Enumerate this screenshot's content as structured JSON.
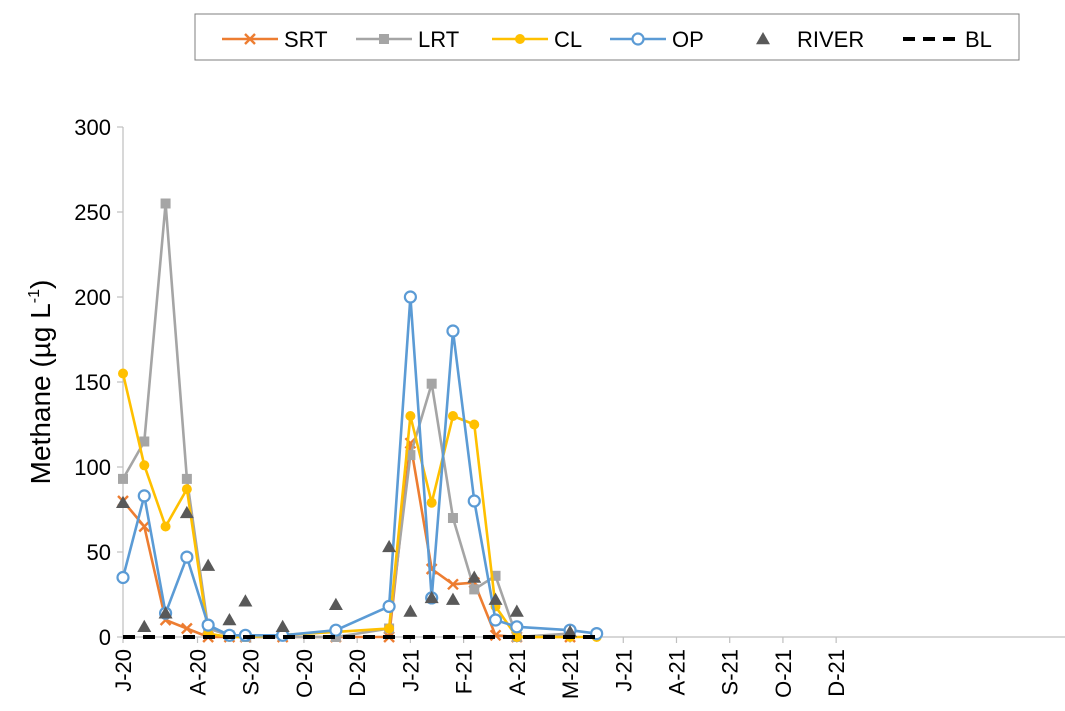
{
  "chart_data": {
    "type": "line",
    "ylabel_main": "Methane (µg L",
    "ylabel_sup": "-1",
    "ylabel_close": ")",
    "ylim": [
      0,
      300
    ],
    "yticks": [
      0,
      50,
      100,
      150,
      200,
      250,
      300
    ],
    "xlim": [
      0,
      17.7
    ],
    "grid": false,
    "legend_position": "top",
    "x_ticks": [
      {
        "label": "J-20",
        "x": 0
      },
      {
        "label": "A-20",
        "x": 1.4
      },
      {
        "label": "S-20",
        "x": 2.4
      },
      {
        "label": "O-20",
        "x": 3.4
      },
      {
        "label": "D-20",
        "x": 4.4
      },
      {
        "label": "J-21",
        "x": 5.4
      },
      {
        "label": "F-21",
        "x": 6.4
      },
      {
        "label": "A-21",
        "x": 7.4
      },
      {
        "label": "M-21",
        "x": 8.4
      },
      {
        "label": "J-21",
        "x": 9.4
      },
      {
        "label": "A-21",
        "x": 10.4
      },
      {
        "label": "S-21",
        "x": 11.4
      },
      {
        "label": "O-21",
        "x": 12.4
      },
      {
        "label": "D-21",
        "x": 13.4
      }
    ],
    "series": [
      {
        "name": "SRT",
        "color": "#ED7D31",
        "marker": "x",
        "line": true,
        "points": [
          [
            0,
            80
          ],
          [
            0.4,
            65
          ],
          [
            0.8,
            10
          ],
          [
            1.2,
            5
          ],
          [
            1.6,
            0
          ],
          [
            2.0,
            0
          ],
          [
            2.3,
            0
          ],
          [
            3.0,
            0
          ],
          [
            4.0,
            0
          ],
          [
            5.0,
            0
          ],
          [
            5.4,
            114
          ],
          [
            5.8,
            40
          ],
          [
            6.2,
            31
          ],
          [
            6.6,
            32
          ],
          [
            7.0,
            1
          ],
          [
            7.4,
            0
          ],
          [
            8.4,
            0
          ]
        ]
      },
      {
        "name": "LRT",
        "color": "#A5A5A5",
        "marker": "square",
        "line": true,
        "points": [
          [
            0,
            93
          ],
          [
            0.4,
            115
          ],
          [
            0.8,
            255
          ],
          [
            1.2,
            93
          ],
          [
            1.6,
            5
          ],
          [
            2.0,
            1
          ],
          [
            2.3,
            0
          ],
          [
            4.0,
            0
          ],
          [
            5.0,
            5
          ],
          [
            5.4,
            107
          ],
          [
            5.8,
            149
          ],
          [
            6.2,
            70
          ],
          [
            6.6,
            28
          ],
          [
            7.0,
            36
          ],
          [
            7.4,
            0
          ],
          [
            8.4,
            2
          ]
        ]
      },
      {
        "name": "CL",
        "color": "#FFC000",
        "marker": "dot",
        "line": true,
        "points": [
          [
            0,
            155
          ],
          [
            0.4,
            101
          ],
          [
            0.8,
            65
          ],
          [
            1.2,
            87
          ],
          [
            1.6,
            2
          ],
          [
            2.0,
            0
          ],
          [
            2.3,
            0
          ],
          [
            4.0,
            3
          ],
          [
            5.0,
            5
          ],
          [
            5.4,
            130
          ],
          [
            5.8,
            79
          ],
          [
            6.2,
            130
          ],
          [
            6.6,
            125
          ],
          [
            7.0,
            18
          ],
          [
            7.4,
            0
          ],
          [
            8.4,
            0
          ],
          [
            8.9,
            0
          ]
        ]
      },
      {
        "name": "OP",
        "color": "#5B9BD5",
        "marker": "circle",
        "line": true,
        "points": [
          [
            0,
            35
          ],
          [
            0.4,
            83
          ],
          [
            0.8,
            14
          ],
          [
            1.2,
            47
          ],
          [
            1.6,
            7
          ],
          [
            2.0,
            1
          ],
          [
            2.3,
            1
          ],
          [
            3.0,
            1
          ],
          [
            4.0,
            4
          ],
          [
            5.0,
            18
          ],
          [
            5.4,
            200
          ],
          [
            5.8,
            23
          ],
          [
            6.2,
            180
          ],
          [
            6.6,
            80
          ],
          [
            7.0,
            10
          ],
          [
            7.4,
            6
          ],
          [
            8.4,
            4
          ],
          [
            8.9,
            2
          ]
        ]
      },
      {
        "name": "RIVER",
        "color": "#595959",
        "marker": "triangle",
        "line": false,
        "points": [
          [
            0,
            79
          ],
          [
            0.4,
            6
          ],
          [
            0.8,
            14
          ],
          [
            1.2,
            73
          ],
          [
            1.6,
            42
          ],
          [
            2.0,
            10
          ],
          [
            2.3,
            21
          ],
          [
            3.0,
            6
          ],
          [
            4.0,
            19
          ],
          [
            5.0,
            53
          ],
          [
            5.4,
            15
          ],
          [
            5.8,
            23
          ],
          [
            6.2,
            22
          ],
          [
            6.6,
            35
          ],
          [
            7.0,
            22
          ],
          [
            7.4,
            15
          ],
          [
            8.4,
            3
          ]
        ]
      },
      {
        "name": "BL",
        "color": "#000000",
        "marker": "none",
        "line": true,
        "dash": true,
        "points": [
          [
            0,
            0
          ],
          [
            8.9,
            0
          ]
        ]
      }
    ]
  }
}
